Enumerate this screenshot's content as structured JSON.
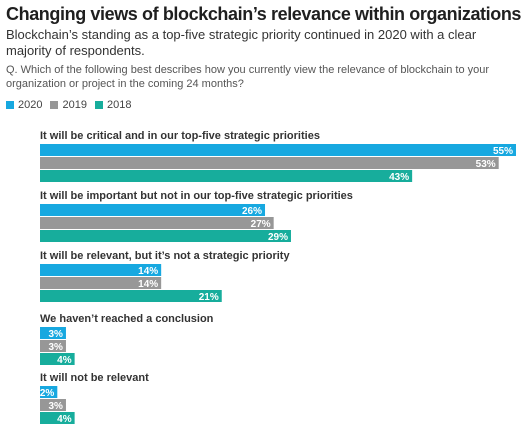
{
  "header": {
    "title": "Changing views of blockchain’s relevance within organizations",
    "subtitle": "Blockchain’s standing as a top-five strategic priority continued in 2020 with a clear majority of respondents.",
    "question": "Q. Which of the following best describes how you currently view the relevance of blockchain to your organization or project in the coming 24 months?"
  },
  "colors": {
    "2020": "#17a8e0",
    "2019": "#979797",
    "2018": "#17ad9c"
  },
  "chart_data": {
    "type": "bar",
    "orientation": "horizontal",
    "categories": [
      "It will be critical and in our top-five strategic priorities",
      "It will be important but not in our top-five strategic priorities",
      "It will be relevant, but it’s not a strategic priority",
      "We haven’t reached a conclusion",
      "It will not be relevant"
    ],
    "series": [
      {
        "name": "2020",
        "values": [
          55,
          26,
          14,
          3,
          2
        ]
      },
      {
        "name": "2019",
        "values": [
          53,
          27,
          14,
          3,
          3
        ]
      },
      {
        "name": "2018",
        "values": [
          43,
          29,
          21,
          4,
          4
        ]
      }
    ],
    "value_suffix": "%",
    "legend": "top-left",
    "grid": false
  }
}
